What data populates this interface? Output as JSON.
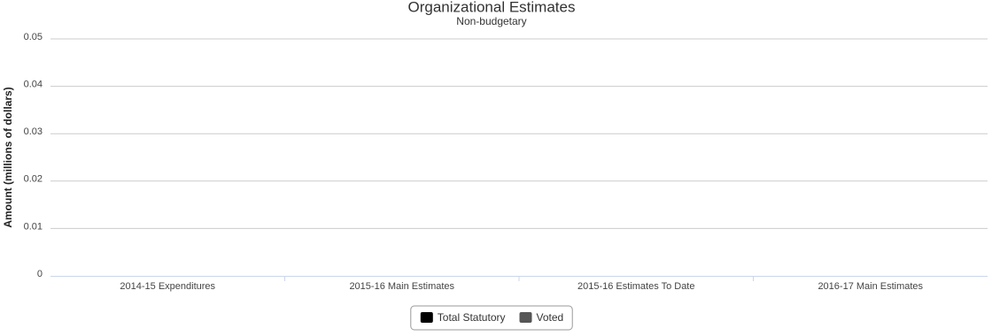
{
  "chart_data": {
    "type": "bar",
    "stacked": true,
    "title": "Organizational Estimates",
    "subtitle": "Non-budgetary",
    "y_label": "Amount (millions of dollars)",
    "categories": [
      "2014-15 Expenditures",
      "2015-16 Main Estimates",
      "2015-16 Estimates To Date",
      "2016-17 Main Estimates"
    ],
    "series": [
      {
        "name": "Total Statutory",
        "color": "#000000",
        "values": [
          0,
          0,
          0,
          0
        ]
      },
      {
        "name": "Voted",
        "color": "#555555",
        "values": [
          0,
          0,
          0,
          0
        ]
      }
    ],
    "ylim": [
      0,
      0.05
    ],
    "yticks": [
      0,
      0.01,
      0.02,
      0.03,
      0.04,
      0.05
    ],
    "grid": true
  }
}
